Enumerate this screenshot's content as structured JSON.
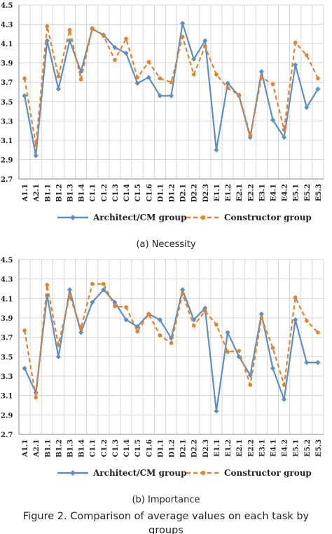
{
  "colors": {
    "architect": "#5b8fc7",
    "constructor": "#e8822a",
    "grid": "#d6d6d6",
    "axis": "#888888"
  },
  "legend": {
    "architect": "Architect/CM group",
    "constructor": "Constructor group"
  },
  "caption": {
    "line1": "Figure 2. Comparison of average values on each task by",
    "line2": "groups"
  },
  "chart_data": [
    {
      "type": "line",
      "subcaption": "(a)  Necessity",
      "ylim": [
        2.7,
        4.5
      ],
      "yticks": [
        "2.7",
        "2.9",
        "3.1",
        "3.3",
        "3.5",
        "3.7",
        "3.9",
        "4.1",
        "4.3",
        "4.5"
      ],
      "categories": [
        "A1.1",
        "A2.1",
        "B1.1",
        "B1.2",
        "B1.3",
        "B1.4",
        "C1.1",
        "C1.2",
        "C1.3",
        "C1.4",
        "C1.5",
        "C1.6",
        "D1.1",
        "D1.2",
        "D2.1",
        "D2.2",
        "D2.3",
        "E1.1",
        "E1.2",
        "E2.1",
        "E2.2",
        "E3.1",
        "E4.1",
        "E4.2",
        "E5.1",
        "E5.2",
        "E5.3"
      ],
      "grid": true,
      "series": [
        {
          "name": "Architect/CM group",
          "style": "solid-diamond",
          "values": [
            3.56,
            2.94,
            4.13,
            3.63,
            4.13,
            3.81,
            4.25,
            4.19,
            4.06,
            4.0,
            3.69,
            3.75,
            3.56,
            3.56,
            4.31,
            3.94,
            4.13,
            3.0,
            3.69,
            3.56,
            3.13,
            3.81,
            3.31,
            3.13,
            3.88,
            3.44,
            3.63
          ]
        },
        {
          "name": "Constructor group",
          "style": "dashed-circle",
          "values": [
            3.74,
            3.05,
            4.28,
            3.76,
            4.24,
            3.73,
            4.26,
            4.18,
            3.93,
            4.15,
            3.75,
            3.91,
            3.74,
            3.7,
            4.17,
            3.78,
            4.07,
            3.78,
            3.64,
            3.57,
            3.15,
            3.75,
            3.68,
            3.21,
            4.11,
            3.98,
            3.74
          ]
        }
      ]
    },
    {
      "type": "line",
      "subcaption": "(b)  Importance",
      "ylim": [
        2.7,
        4.5
      ],
      "yticks": [
        "2.7",
        "2.9",
        "3.1",
        "3.3",
        "3.5",
        "3.7",
        "3.9",
        "4.1",
        "4.3",
        "4.5"
      ],
      "categories": [
        "A1.1",
        "A2.1",
        "B1.1",
        "B1.2",
        "B1.3",
        "B1.4",
        "C1.1",
        "C1.2",
        "C1.3",
        "C1.4",
        "C1.5",
        "C1.6",
        "D1.1",
        "D1.2",
        "D2.1",
        "D2.2",
        "D2.3",
        "E1.1",
        "E1.2",
        "E2.1",
        "E2.2",
        "E3.1",
        "E4.1",
        "E4.2",
        "E5.1",
        "E5.2",
        "E5.3"
      ],
      "grid": true,
      "series": [
        {
          "name": "Architect/CM group",
          "style": "solid-diamond",
          "values": [
            3.38,
            3.13,
            4.13,
            3.5,
            4.19,
            3.75,
            4.06,
            4.19,
            4.06,
            3.88,
            3.81,
            3.94,
            3.88,
            3.69,
            4.19,
            3.88,
            4.0,
            2.94,
            3.75,
            3.5,
            3.31,
            3.94,
            3.38,
            3.06,
            3.88,
            3.44,
            3.44
          ]
        },
        {
          "name": "Constructor group",
          "style": "dashed-circle",
          "values": [
            3.77,
            3.08,
            4.24,
            3.62,
            4.13,
            3.79,
            4.25,
            4.25,
            4.02,
            4.01,
            3.76,
            3.94,
            3.72,
            3.64,
            4.15,
            3.82,
            3.97,
            3.83,
            3.55,
            3.56,
            3.21,
            3.9,
            3.59,
            3.21,
            4.11,
            3.87,
            3.75
          ]
        }
      ]
    }
  ]
}
